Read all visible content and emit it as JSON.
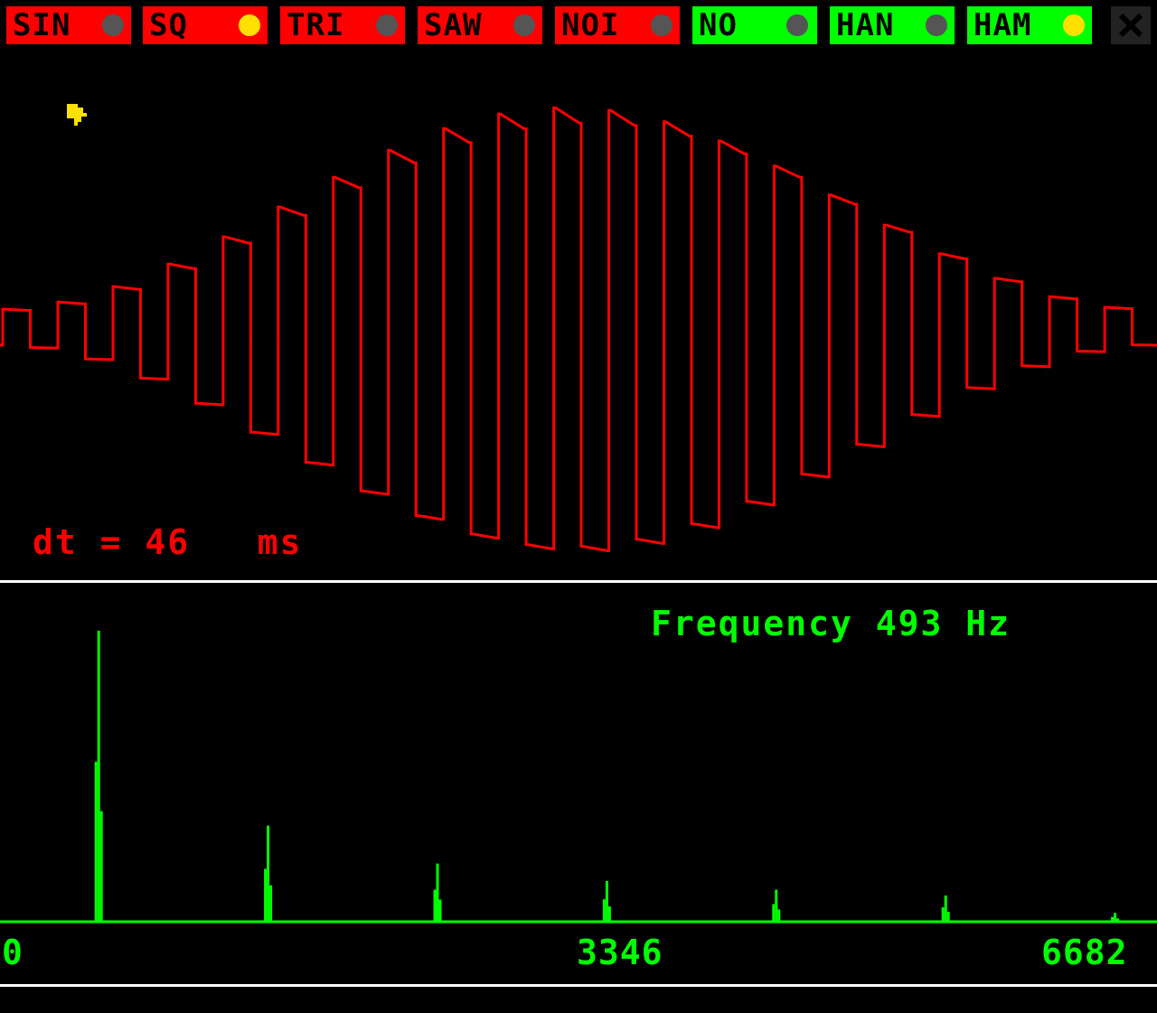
{
  "toolbar": {
    "buttons": [
      {
        "label": "SIN",
        "active": false,
        "group": "waveform"
      },
      {
        "label": "SQ",
        "active": true,
        "group": "waveform"
      },
      {
        "label": "TRI",
        "active": false,
        "group": "waveform"
      },
      {
        "label": "SAW",
        "active": false,
        "group": "waveform"
      },
      {
        "label": "NOI",
        "active": false,
        "group": "waveform"
      },
      {
        "label": "NO",
        "active": false,
        "group": "window"
      },
      {
        "label": "HAN",
        "active": false,
        "group": "window"
      },
      {
        "label": "HAM",
        "active": true,
        "group": "window"
      }
    ],
    "close_icon": "close-icon"
  },
  "scope": {
    "dt_label": "dt = 46   ms",
    "color": "#ff0000"
  },
  "spectrum": {
    "frequency_label": "Frequency 493 Hz",
    "color": "#00ff00",
    "axis": {
      "min_label": "0",
      "mid_label": "3346",
      "max_label": "6682"
    }
  },
  "chart_data": [
    {
      "type": "line",
      "name": "",
      "waveform": "square",
      "envelope": "hamming",
      "cycles": 21
    },
    {
      "type": "bar",
      "name": "",
      "xlim": [
        0,
        6682
      ],
      "x": [
        493,
        1479,
        2465,
        3451,
        4437,
        5423,
        6409,
        6682
      ],
      "values": [
        1.0,
        0.33,
        0.2,
        0.14,
        0.11,
        0.09,
        0.03,
        0.08
      ]
    }
  ],
  "colors": {
    "background": "#000000",
    "waveform_btn": "#ff0000",
    "window_btn": "#00ff00",
    "led_on": "#ffe000",
    "led_off": "#555555"
  }
}
